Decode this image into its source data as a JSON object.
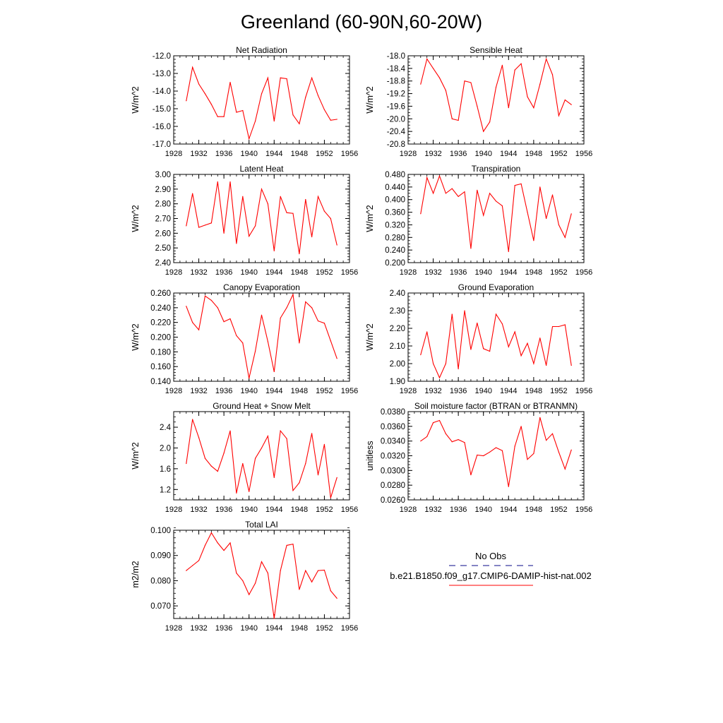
{
  "page_title": "Greenland (60-90N,60-20W)",
  "legend": {
    "entries": [
      {
        "label": "No Obs",
        "color": "#3a3aa0",
        "style": "dashed"
      },
      {
        "label": "b.e21.B1850.f09_g17.CMIP6-DAMIP-hist-nat.002",
        "color": "#ff0000",
        "style": "solid"
      }
    ]
  },
  "x_axis": {
    "range": [
      1928,
      1956
    ],
    "ticks": [
      1928,
      1932,
      1936,
      1940,
      1944,
      1948,
      1952,
      1956
    ],
    "tick_labels": [
      "1928",
      "1932",
      "1936",
      "1940",
      "1944",
      "1948",
      "1952",
      "1956"
    ],
    "minor_step": 1
  },
  "series_color": "#ff0000",
  "chart_data": [
    {
      "type": "line",
      "title": "Net Radiation",
      "ylabel": "W/m^2",
      "ylim": [
        -17.0,
        -12.0
      ],
      "yticks": [
        "-12.0",
        "-13.0",
        "-14.0",
        "-15.0",
        "-16.0",
        "-17.0"
      ],
      "ytick_values": [
        -12.0,
        -13.0,
        -14.0,
        -15.0,
        -16.0,
        -17.0
      ],
      "y_minor_step": 0.2,
      "x": [
        1930,
        1931,
        1932,
        1933,
        1934,
        1935,
        1936,
        1937,
        1938,
        1939,
        1940,
        1941,
        1942,
        1943,
        1944,
        1945,
        1946,
        1947,
        1948,
        1949,
        1950,
        1951,
        1952,
        1953,
        1954
      ],
      "values": [
        -14.55,
        -12.65,
        -13.6,
        -14.15,
        -14.75,
        -15.45,
        -15.45,
        -13.5,
        -15.2,
        -15.1,
        -16.7,
        -15.7,
        -14.15,
        -13.25,
        -15.7,
        -13.25,
        -13.3,
        -15.35,
        -15.85,
        -14.35,
        -13.25,
        -14.25,
        -15.05,
        -15.65,
        -15.6
      ]
    },
    {
      "type": "line",
      "title": "Sensible Heat",
      "ylabel": "W/m^2",
      "ylim": [
        -20.8,
        -18.0
      ],
      "yticks": [
        "-18.0",
        "-18.4",
        "-18.8",
        "-19.2",
        "-19.6",
        "-20.0",
        "-20.4",
        "-20.8"
      ],
      "ytick_values": [
        -18.0,
        -18.4,
        -18.8,
        -19.2,
        -19.6,
        -20.0,
        -20.4,
        -20.8
      ],
      "y_minor_step": 0.1,
      "x": [
        1930,
        1931,
        1932,
        1933,
        1934,
        1935,
        1936,
        1937,
        1938,
        1939,
        1940,
        1941,
        1942,
        1943,
        1944,
        1945,
        1946,
        1947,
        1948,
        1949,
        1950,
        1951,
        1952,
        1953,
        1954
      ],
      "values": [
        -18.9,
        -18.1,
        -18.4,
        -18.7,
        -19.1,
        -20.0,
        -20.05,
        -18.8,
        -18.85,
        -19.6,
        -20.4,
        -20.1,
        -19.0,
        -18.3,
        -19.65,
        -18.45,
        -18.25,
        -19.3,
        -19.65,
        -18.9,
        -18.1,
        -18.6,
        -19.9,
        -19.4,
        -19.55
      ]
    },
    {
      "type": "line",
      "title": "Latent Heat",
      "ylabel": "W/m^2",
      "ylim": [
        2.4,
        3.0
      ],
      "yticks": [
        "3.00",
        "2.90",
        "2.80",
        "2.70",
        "2.60",
        "2.50",
        "2.40"
      ],
      "ytick_values": [
        3.0,
        2.9,
        2.8,
        2.7,
        2.6,
        2.5,
        2.4
      ],
      "y_minor_step": 0.02,
      "x": [
        1930,
        1931,
        1932,
        1933,
        1934,
        1935,
        1936,
        1937,
        1938,
        1939,
        1940,
        1941,
        1942,
        1943,
        1944,
        1945,
        1946,
        1947,
        1948,
        1949,
        1950,
        1951,
        1952,
        1953,
        1954
      ],
      "values": [
        2.65,
        2.87,
        2.64,
        2.655,
        2.67,
        2.95,
        2.6,
        2.95,
        2.53,
        2.85,
        2.58,
        2.65,
        2.9,
        2.8,
        2.48,
        2.85,
        2.74,
        2.735,
        2.46,
        2.83,
        2.575,
        2.85,
        2.75,
        2.7,
        2.52
      ]
    },
    {
      "type": "line",
      "title": "Transpiration",
      "ylabel": "W/m^2",
      "ylim": [
        0.2,
        0.48
      ],
      "yticks": [
        "0.480",
        "0.440",
        "0.400",
        "0.360",
        "0.320",
        "0.280",
        "0.240",
        "0.200"
      ],
      "ytick_values": [
        0.48,
        0.44,
        0.4,
        0.36,
        0.32,
        0.28,
        0.24,
        0.2
      ],
      "y_minor_step": 0.01,
      "x": [
        1930,
        1931,
        1932,
        1933,
        1934,
        1935,
        1936,
        1937,
        1938,
        1939,
        1940,
        1941,
        1942,
        1943,
        1944,
        1945,
        1946,
        1947,
        1948,
        1949,
        1950,
        1951,
        1952,
        1953,
        1954
      ],
      "values": [
        0.355,
        0.47,
        0.42,
        0.475,
        0.42,
        0.435,
        0.41,
        0.425,
        0.245,
        0.43,
        0.35,
        0.42,
        0.395,
        0.38,
        0.235,
        0.445,
        0.45,
        0.36,
        0.27,
        0.44,
        0.34,
        0.415,
        0.32,
        0.28,
        0.355
      ]
    },
    {
      "type": "line",
      "title": "Canopy Evaporation",
      "ylabel": "W/m^2",
      "ylim": [
        0.14,
        0.26
      ],
      "yticks": [
        "0.260",
        "0.240",
        "0.220",
        "0.200",
        "0.180",
        "0.160",
        "0.140"
      ],
      "ytick_values": [
        0.26,
        0.24,
        0.22,
        0.2,
        0.18,
        0.16,
        0.14
      ],
      "y_minor_step": 0.004,
      "x": [
        1930,
        1931,
        1932,
        1933,
        1934,
        1935,
        1936,
        1937,
        1938,
        1939,
        1940,
        1941,
        1942,
        1943,
        1944,
        1945,
        1946,
        1947,
        1948,
        1949,
        1950,
        1951,
        1952,
        1953,
        1954
      ],
      "values": [
        0.242,
        0.22,
        0.21,
        0.256,
        0.25,
        0.24,
        0.221,
        0.225,
        0.202,
        0.192,
        0.144,
        0.181,
        0.23,
        0.194,
        0.153,
        0.226,
        0.24,
        0.258,
        0.192,
        0.248,
        0.24,
        0.222,
        0.219,
        0.195,
        0.171
      ]
    },
    {
      "type": "line",
      "title": "Ground Evaporation",
      "ylabel": "W/m^2",
      "ylim": [
        1.9,
        2.4
      ],
      "yticks": [
        "2.40",
        "2.30",
        "2.20",
        "2.10",
        "2.00",
        "1.90"
      ],
      "ytick_values": [
        2.4,
        2.3,
        2.2,
        2.1,
        2.0,
        1.9
      ],
      "y_minor_step": 0.02,
      "x": [
        1930,
        1931,
        1932,
        1933,
        1934,
        1935,
        1936,
        1937,
        1938,
        1939,
        1940,
        1941,
        1942,
        1943,
        1944,
        1945,
        1946,
        1947,
        1948,
        1949,
        1950,
        1951,
        1952,
        1953,
        1954
      ],
      "values": [
        2.05,
        2.18,
        2.0,
        1.92,
        2.0,
        2.28,
        1.97,
        2.3,
        2.08,
        2.23,
        2.085,
        2.07,
        2.28,
        2.225,
        2.095,
        2.18,
        2.045,
        2.115,
        2.0,
        2.145,
        1.99,
        2.21,
        2.21,
        2.22,
        1.99
      ]
    },
    {
      "type": "line",
      "title": "Ground Heat + Snow Melt",
      "ylabel": "W/m^2",
      "ylim": [
        1.0,
        2.7
      ],
      "yticks": [
        "2.4",
        "2.0",
        "1.6",
        "1.2"
      ],
      "ytick_values": [
        2.4,
        2.0,
        1.6,
        1.2
      ],
      "y_minor_step": 0.1,
      "x": [
        1930,
        1931,
        1932,
        1933,
        1934,
        1935,
        1936,
        1937,
        1938,
        1939,
        1940,
        1941,
        1942,
        1943,
        1944,
        1945,
        1946,
        1947,
        1948,
        1949,
        1950,
        1951,
        1952,
        1953,
        1954
      ],
      "values": [
        1.7,
        2.55,
        2.2,
        1.8,
        1.65,
        1.55,
        1.9,
        2.33,
        1.13,
        1.7,
        1.16,
        1.8,
        2.0,
        2.23,
        1.43,
        2.33,
        2.18,
        1.18,
        1.33,
        1.7,
        2.28,
        1.48,
        2.07,
        1.04,
        1.43
      ]
    },
    {
      "type": "line",
      "title": "Soil moisture factor (BTRAN or BTRANMN)",
      "ylabel": "unitless",
      "ylim": [
        0.026,
        0.038
      ],
      "yticks": [
        "0.0380",
        "0.0360",
        "0.0340",
        "0.0320",
        "0.0300",
        "0.0280",
        "0.0260"
      ],
      "ytick_values": [
        0.038,
        0.036,
        0.034,
        0.032,
        0.03,
        0.028,
        0.026
      ],
      "y_minor_step": 0.0004,
      "x": [
        1930,
        1931,
        1932,
        1933,
        1934,
        1935,
        1936,
        1937,
        1938,
        1939,
        1940,
        1941,
        1942,
        1943,
        1944,
        1945,
        1946,
        1947,
        1948,
        1949,
        1950,
        1951,
        1952,
        1953,
        1954
      ],
      "values": [
        0.034,
        0.0346,
        0.0365,
        0.0368,
        0.035,
        0.0339,
        0.0342,
        0.0338,
        0.0294,
        0.0321,
        0.032,
        0.0325,
        0.0331,
        0.0327,
        0.0278,
        0.0333,
        0.036,
        0.0315,
        0.0323,
        0.0372,
        0.0341,
        0.035,
        0.0325,
        0.0302,
        0.0328
      ]
    },
    {
      "type": "line",
      "title": "Total LAI",
      "ylabel": "m2/m2",
      "ylim": [
        0.065,
        0.1
      ],
      "yticks": [
        "0.100",
        "0.090",
        "0.080",
        "0.070"
      ],
      "ytick_values": [
        0.1,
        0.09,
        0.08,
        0.07
      ],
      "y_minor_step": 0.002,
      "x": [
        1930,
        1931,
        1932,
        1933,
        1934,
        1935,
        1936,
        1937,
        1938,
        1939,
        1940,
        1941,
        1942,
        1943,
        1944,
        1945,
        1946,
        1947,
        1948,
        1949,
        1950,
        1951,
        1952,
        1953,
        1954
      ],
      "values": [
        0.084,
        0.086,
        0.088,
        0.094,
        0.099,
        0.095,
        0.092,
        0.095,
        0.083,
        0.08,
        0.0745,
        0.079,
        0.0875,
        0.083,
        0.065,
        0.084,
        0.094,
        0.0945,
        0.0765,
        0.084,
        0.0795,
        0.084,
        0.0842,
        0.076,
        0.073
      ]
    }
  ]
}
